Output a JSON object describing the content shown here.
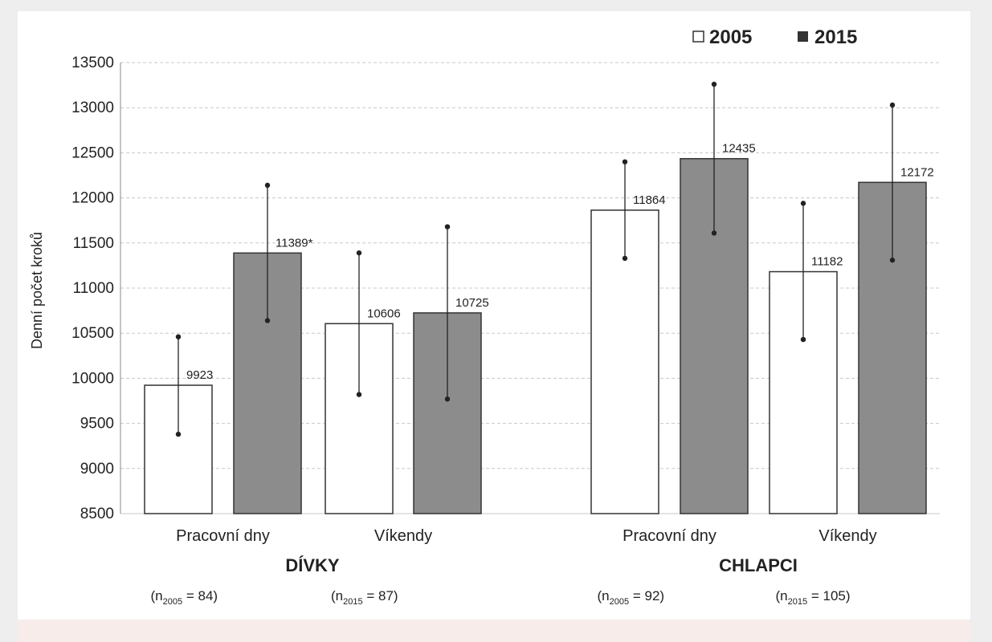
{
  "chart_data": {
    "type": "bar",
    "title": "",
    "ylabel": "Denní počet kroků",
    "ylim": [
      8500,
      13500
    ],
    "yticks": [
      8500,
      9000,
      9500,
      10000,
      10500,
      11000,
      11500,
      12000,
      12500,
      13000,
      13500
    ],
    "grid": true,
    "legend_position": "top-right",
    "colors": {
      "2005": "#ffffff",
      "2015": "#8c8c8c",
      "edge": "#333333",
      "grid": "#c8c8c8"
    },
    "series": [
      {
        "name": "2005",
        "values": [
          9923,
          10606,
          11864,
          11182
        ]
      },
      {
        "name": "2015",
        "values": [
          11389,
          10725,
          12435,
          12172
        ]
      }
    ],
    "value_labels": {
      "2005": [
        "9923",
        "10606",
        "11864",
        "11182"
      ],
      "2015": [
        "11389*",
        "10725",
        "12435",
        "12172"
      ]
    },
    "error_bars": {
      "2005": [
        [
          9380,
          10460
        ],
        [
          9820,
          11390
        ],
        [
          11330,
          12400
        ],
        [
          10430,
          11940
        ]
      ],
      "2015": [
        [
          10640,
          12140
        ],
        [
          9770,
          11680
        ],
        [
          11610,
          13260
        ],
        [
          11310,
          13030
        ]
      ]
    },
    "categories": [
      "Pracovní dny",
      "Víkendy",
      "Pracovní dny",
      "Víkendy"
    ],
    "groups": [
      {
        "label": "DÍVKY",
        "n": [
          {
            "prefix": "(n",
            "sub": "2005",
            "rest": " = 84)"
          },
          {
            "prefix": "(n",
            "sub": "2015",
            "rest": " = 87)"
          }
        ]
      },
      {
        "label": "CHLAPCI",
        "n": [
          {
            "prefix": "(n",
            "sub": "2005",
            "rest": " = 92)"
          },
          {
            "prefix": "(n",
            "sub": "2015",
            "rest": " = 105)"
          }
        ]
      }
    ]
  }
}
